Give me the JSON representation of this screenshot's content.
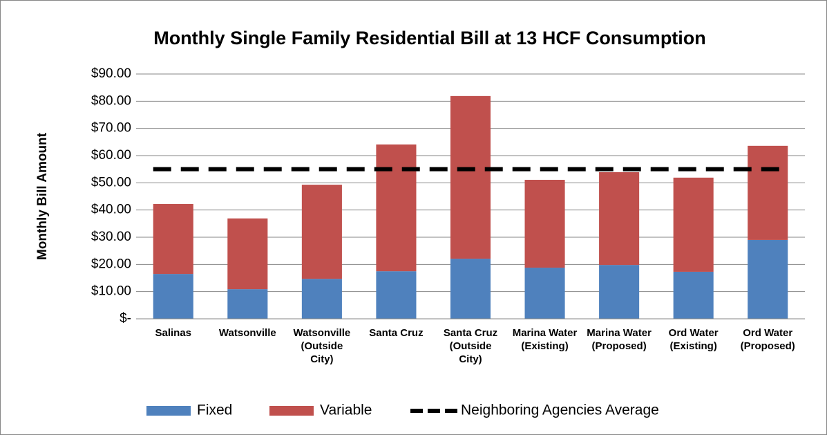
{
  "chart_data": {
    "type": "bar",
    "stacked": true,
    "title": "Monthly Single Family Residential Bill at 13 HCF Consumption",
    "y_label": "Monthly Bill Amount",
    "categories": [
      "Salinas",
      "Watsonville",
      "Watsonville (Outside City)",
      "Santa Cruz",
      "Santa Cruz (Outside City)",
      "Marina Water (Existing)",
      "Marina Water (Proposed)",
      "Ord Water (Existing)",
      "Ord Water (Proposed)"
    ],
    "series": [
      {
        "name": "Fixed",
        "color": "#4f81bd",
        "values": [
          16.5,
          10.9,
          14.7,
          17.5,
          22.1,
          18.8,
          19.8,
          17.3,
          29.0
        ]
      },
      {
        "name": "Variable",
        "color": "#c0504d",
        "values": [
          25.7,
          26.0,
          34.6,
          46.6,
          59.8,
          32.3,
          34.1,
          34.6,
          34.6
        ]
      },
      {
        "name": "Neighboring Agencies Average",
        "type": "line",
        "dashed": true,
        "color": "#000000",
        "values": [
          55,
          55,
          55,
          55,
          55,
          55,
          55,
          55,
          55
        ]
      }
    ],
    "ylim": [
      0,
      90
    ],
    "yticks": [
      {
        "value": 0,
        "label": "$-"
      },
      {
        "value": 10,
        "label": "$10.00"
      },
      {
        "value": 20,
        "label": "$20.00"
      },
      {
        "value": 30,
        "label": "$30.00"
      },
      {
        "value": 40,
        "label": "$40.00"
      },
      {
        "value": 50,
        "label": "$50.00"
      },
      {
        "value": 60,
        "label": "$60.00"
      },
      {
        "value": 70,
        "label": "$70.00"
      },
      {
        "value": 80,
        "label": "$80.00"
      },
      {
        "value": 90,
        "label": "$90.00"
      }
    ],
    "grid": true,
    "legend": "bottom"
  }
}
